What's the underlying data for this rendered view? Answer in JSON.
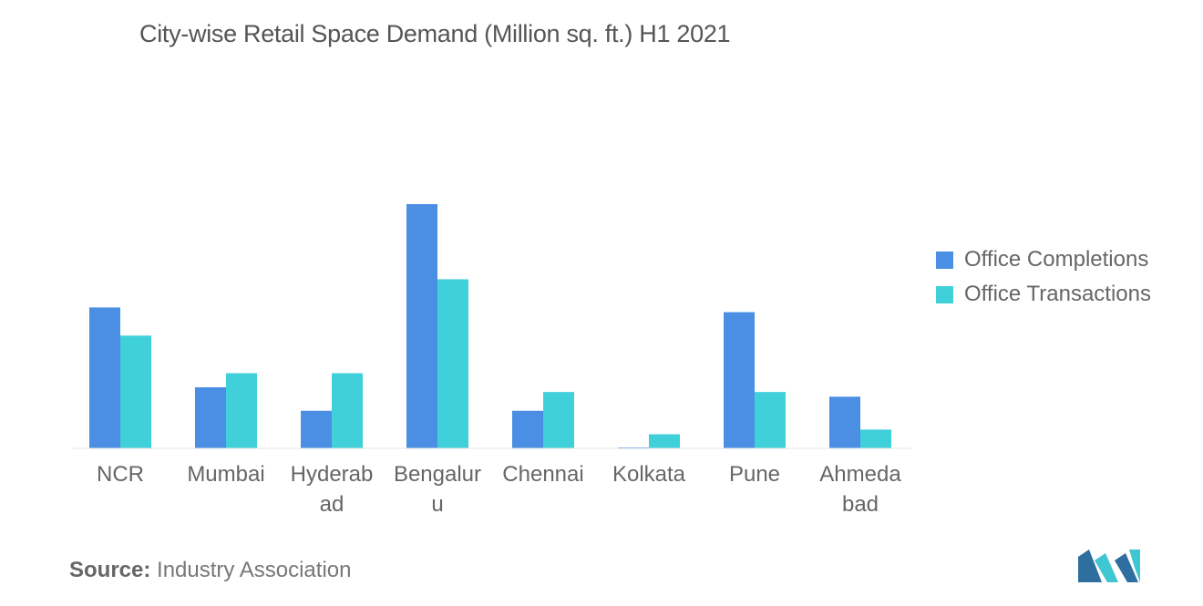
{
  "title": "City-wise Retail Space Demand (Million sq. ft.) H1 2021",
  "source": {
    "label": "Source:",
    "text": "Industry Association"
  },
  "colors": {
    "completions": "#4a8fe3",
    "transactions": "#3fd0da",
    "logo": "#2f6f9f",
    "logo_accent": "#3fc6d0"
  },
  "logo_icon": "mordor-logo-icon",
  "chart_data": {
    "type": "bar",
    "title": "City-wise Retail Space Demand (Million sq. ft.) H1 2021",
    "categories": [
      [
        "NCR"
      ],
      [
        "Mumbai"
      ],
      [
        "Hyderab",
        "ad"
      ],
      [
        "Bengalur",
        "u"
      ],
      [
        "Chennai"
      ],
      [
        "Kolkata"
      ],
      [
        "Pune"
      ],
      [
        "Ahmeda",
        "bad"
      ]
    ],
    "series": [
      {
        "name": "Office Completions",
        "values": [
          3.0,
          1.3,
          0.8,
          5.2,
          0.8,
          0.02,
          2.9,
          1.1
        ]
      },
      {
        "name": "Office Transactions",
        "values": [
          2.4,
          1.6,
          1.6,
          3.6,
          1.2,
          0.3,
          1.2,
          0.4
        ]
      }
    ],
    "ylim": [
      0,
      5.2
    ],
    "grid": false,
    "legend": "right"
  }
}
